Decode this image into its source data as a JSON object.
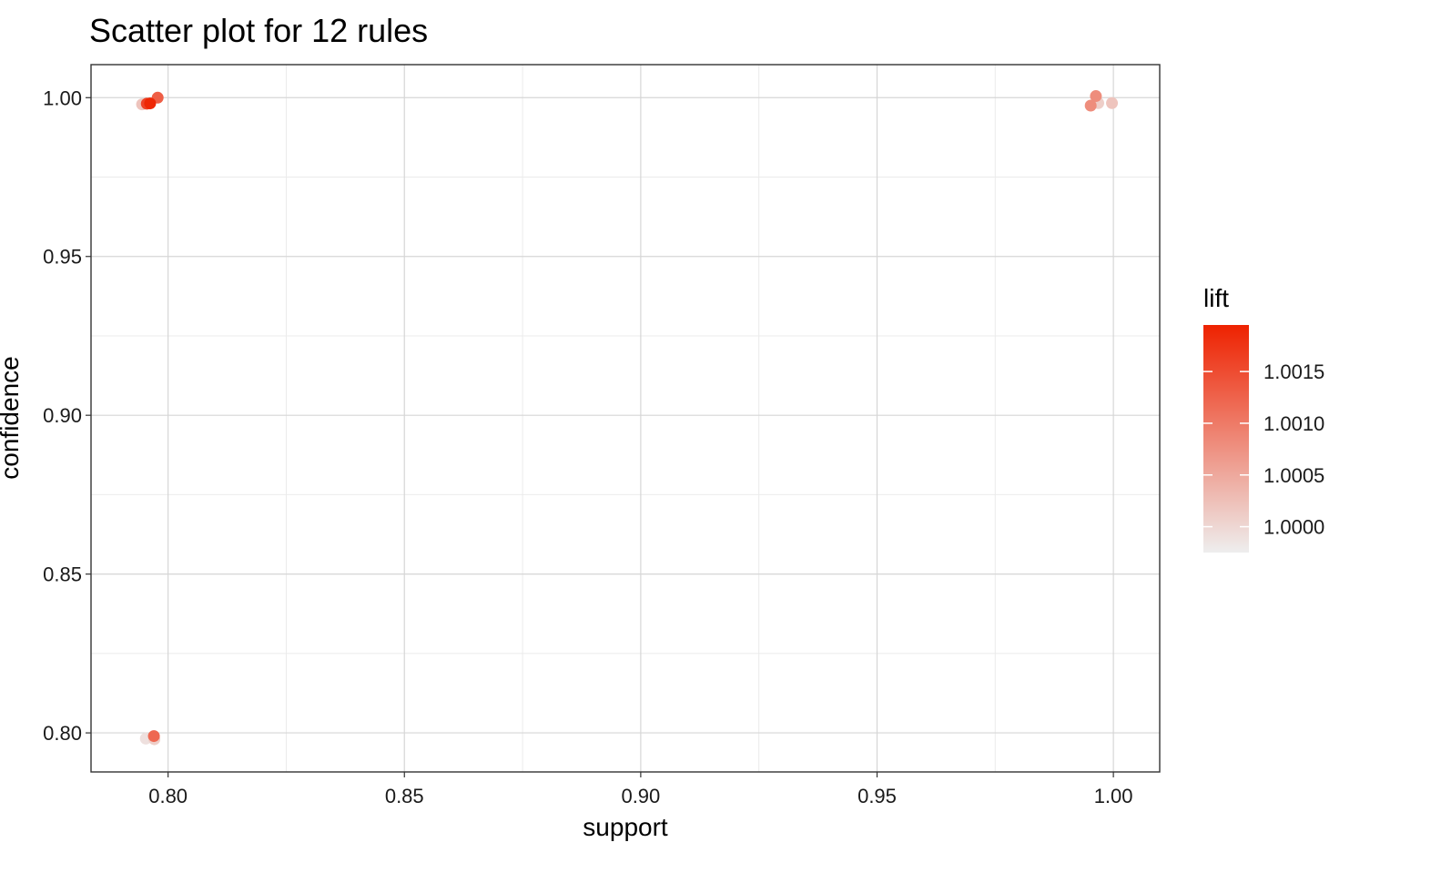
{
  "chart_data": {
    "type": "scatter",
    "title": "Scatter plot for 12 rules",
    "xlabel": "support",
    "ylabel": "confidence",
    "xlim": [
      0.7837,
      1.0098
    ],
    "ylim": [
      0.7877,
      1.0104
    ],
    "x_ticks": [
      0.8,
      0.85,
      0.9,
      0.95,
      1.0
    ],
    "x_tick_labels": [
      "0.80",
      "0.85",
      "0.90",
      "0.95",
      "1.00"
    ],
    "y_ticks": [
      0.8,
      0.85,
      0.9,
      0.95,
      1.0
    ],
    "y_tick_labels": [
      "0.80",
      "0.85",
      "0.90",
      "0.95",
      "1.00"
    ],
    "grid": true,
    "color_scale": {
      "name": "lift",
      "min": 0.99975,
      "max": 1.00195,
      "low_color": "#eeeeee",
      "high_color": "#ee2200",
      "breaks": [
        1.0,
        1.0005,
        1.001,
        1.0015
      ],
      "break_labels": [
        "1.0000",
        "1.0005",
        "1.0010",
        "1.0015"
      ]
    },
    "legend_position": "right",
    "points": [
      {
        "support": 0.7962,
        "confidence": 0.9982,
        "lift": 1.0019
      },
      {
        "support": 0.7955,
        "confidence": 0.9981,
        "lift": 1.0016
      },
      {
        "support": 0.7978,
        "confidence": 1.0,
        "lift": 1.0013
      },
      {
        "support": 0.7945,
        "confidence": 0.9979,
        "lift": 1.0002
      },
      {
        "support": 0.797,
        "confidence": 0.799,
        "lift": 1.0012
      },
      {
        "support": 0.7953,
        "confidence": 0.7982,
        "lift": 0.9999
      },
      {
        "support": 0.7971,
        "confidence": 0.798,
        "lift": 1.0001
      },
      {
        "support": 0.9963,
        "confidence": 1.0005,
        "lift": 1.0008
      },
      {
        "support": 0.9952,
        "confidence": 0.9975,
        "lift": 1.0008
      },
      {
        "support": 0.9968,
        "confidence": 0.9983,
        "lift": 1.0001
      },
      {
        "support": 0.9997,
        "confidence": 0.9983,
        "lift": 1.0002
      },
      {
        "support": 0.9966,
        "confidence": 0.9985,
        "lift": 1.0
      }
    ]
  }
}
